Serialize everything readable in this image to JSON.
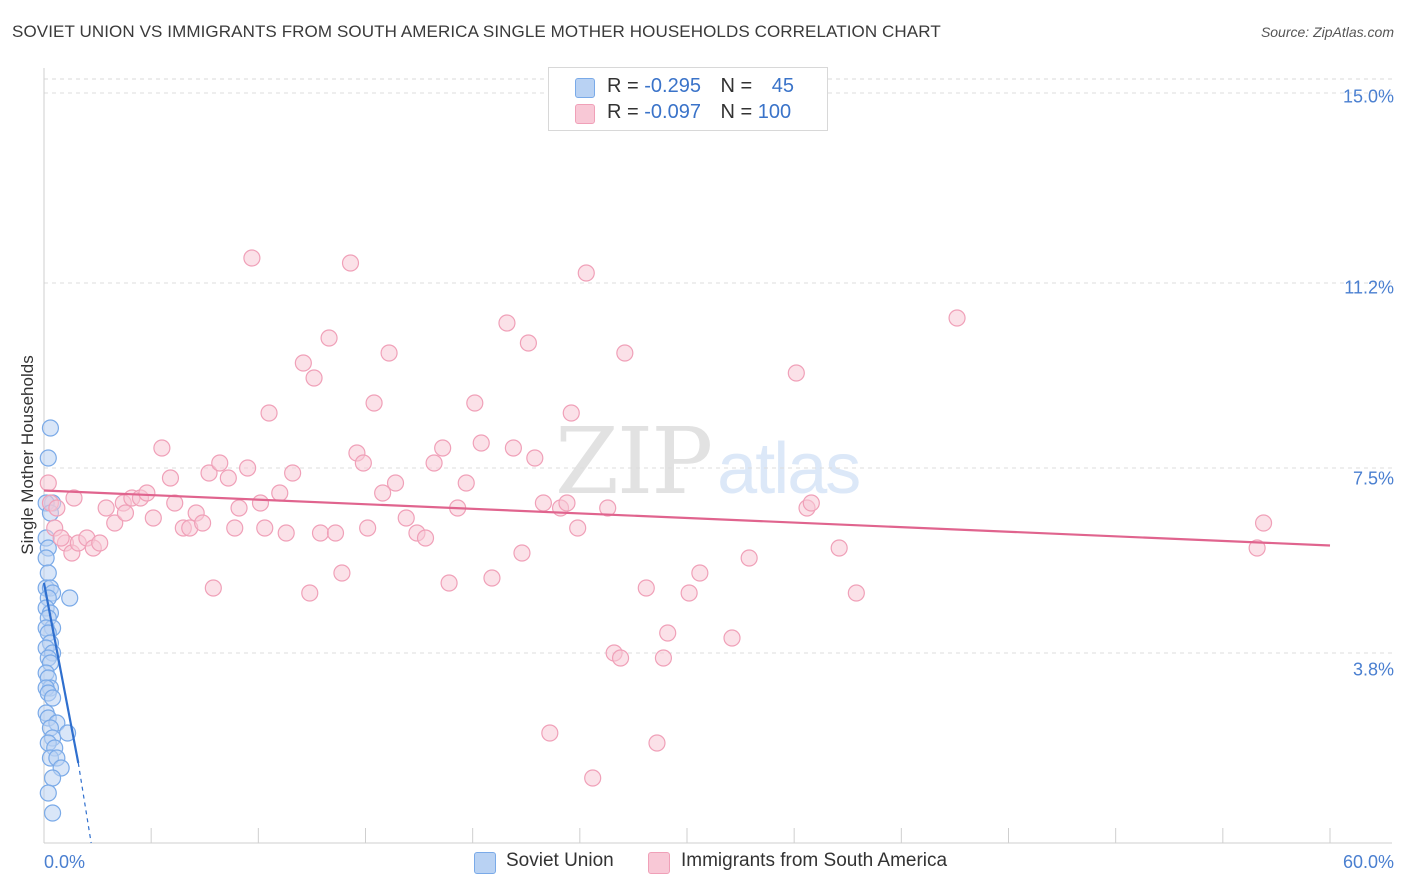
{
  "chart_data": {
    "type": "scatter",
    "title": "SOVIET UNION VS IMMIGRANTS FROM SOUTH AMERICA SINGLE MOTHER HOUSEHOLDS CORRELATION CHART",
    "source": "Source: ZipAtlas.com",
    "ylabel": "Single Mother Households",
    "xlabel": "",
    "xlim": [
      0,
      60
    ],
    "ylim": [
      0,
      15.5
    ],
    "x_tick_labels": [
      "0.0%",
      "60.0%"
    ],
    "y_ticks": [
      {
        "value": 15.0,
        "label": "15.0%"
      },
      {
        "value": 11.2,
        "label": "11.2%"
      },
      {
        "value": 7.5,
        "label": "7.5%"
      },
      {
        "value": 3.8,
        "label": "3.8%"
      }
    ],
    "watermark": {
      "part1": "ZIP",
      "part2": "atlas"
    },
    "legend": {
      "r_label": "R =",
      "n_label": "N =",
      "entries": [
        {
          "r": "-0.295",
          "n": "45"
        },
        {
          "r": "-0.097",
          "n": "100"
        }
      ]
    },
    "series": [
      {
        "name": "Soviet Union",
        "color": "#7aaae8",
        "fill": "#b9d2f3",
        "trend": {
          "x1": 0.0,
          "y1": 5.2,
          "x2": 1.6,
          "y2": 1.6,
          "dash_to_x": 2.2,
          "dash_to_y": 0.0,
          "color": "#2f6fce"
        },
        "points": [
          [
            0.3,
            8.3
          ],
          [
            0.2,
            7.7
          ],
          [
            0.4,
            6.8
          ],
          [
            0.1,
            6.8
          ],
          [
            0.3,
            6.6
          ],
          [
            0.1,
            6.1
          ],
          [
            0.2,
            5.9
          ],
          [
            0.1,
            5.7
          ],
          [
            0.2,
            5.4
          ],
          [
            0.1,
            5.1
          ],
          [
            0.3,
            5.1
          ],
          [
            0.4,
            5.0
          ],
          [
            1.2,
            4.9
          ],
          [
            0.2,
            4.9
          ],
          [
            0.1,
            4.7
          ],
          [
            0.3,
            4.6
          ],
          [
            0.2,
            4.5
          ],
          [
            0.4,
            4.3
          ],
          [
            0.1,
            4.3
          ],
          [
            0.2,
            4.2
          ],
          [
            0.3,
            4.0
          ],
          [
            0.1,
            3.9
          ],
          [
            0.4,
            3.8
          ],
          [
            0.2,
            3.7
          ],
          [
            0.3,
            3.6
          ],
          [
            0.1,
            3.4
          ],
          [
            0.2,
            3.3
          ],
          [
            0.3,
            3.1
          ],
          [
            0.1,
            3.1
          ],
          [
            0.2,
            3.0
          ],
          [
            0.4,
            2.9
          ],
          [
            0.1,
            2.6
          ],
          [
            0.2,
            2.5
          ],
          [
            0.6,
            2.4
          ],
          [
            0.3,
            2.3
          ],
          [
            1.1,
            2.2
          ],
          [
            0.4,
            2.1
          ],
          [
            0.2,
            2.0
          ],
          [
            0.5,
            1.9
          ],
          [
            0.3,
            1.7
          ],
          [
            0.6,
            1.7
          ],
          [
            0.8,
            1.5
          ],
          [
            0.4,
            1.3
          ],
          [
            0.2,
            1.0
          ],
          [
            0.4,
            0.6
          ]
        ]
      },
      {
        "name": "Immigrants from South America",
        "color": "#f0a0b8",
        "fill": "#f8c8d6",
        "trend": {
          "x1": 0.0,
          "y1": 7.05,
          "x2": 60.0,
          "y2": 5.95,
          "color": "#e0648e"
        },
        "points": [
          [
            0.2,
            7.2
          ],
          [
            0.3,
            6.8
          ],
          [
            0.5,
            6.3
          ],
          [
            1.0,
            6.0
          ],
          [
            1.3,
            5.8
          ],
          [
            0.8,
            6.1
          ],
          [
            1.6,
            6.0
          ],
          [
            2.0,
            6.1
          ],
          [
            2.3,
            5.9
          ],
          [
            2.6,
            6.0
          ],
          [
            2.9,
            6.7
          ],
          [
            3.3,
            6.4
          ],
          [
            3.7,
            6.8
          ],
          [
            3.8,
            6.6
          ],
          [
            4.1,
            6.9
          ],
          [
            4.5,
            6.9
          ],
          [
            4.8,
            7.0
          ],
          [
            5.1,
            6.5
          ],
          [
            5.5,
            7.9
          ],
          [
            5.9,
            7.3
          ],
          [
            6.1,
            6.8
          ],
          [
            6.5,
            6.3
          ],
          [
            6.8,
            6.3
          ],
          [
            7.1,
            6.6
          ],
          [
            7.4,
            6.4
          ],
          [
            7.7,
            7.4
          ],
          [
            7.9,
            5.1
          ],
          [
            8.2,
            7.6
          ],
          [
            8.6,
            7.3
          ],
          [
            8.9,
            6.3
          ],
          [
            9.1,
            6.7
          ],
          [
            9.5,
            7.5
          ],
          [
            9.7,
            11.7
          ],
          [
            10.1,
            6.8
          ],
          [
            10.3,
            6.3
          ],
          [
            10.5,
            8.6
          ],
          [
            11.0,
            7.0
          ],
          [
            11.3,
            6.2
          ],
          [
            11.6,
            7.4
          ],
          [
            12.1,
            9.6
          ],
          [
            12.4,
            5.0
          ],
          [
            12.6,
            9.3
          ],
          [
            12.9,
            6.2
          ],
          [
            13.3,
            10.1
          ],
          [
            13.6,
            6.2
          ],
          [
            13.9,
            5.4
          ],
          [
            14.3,
            11.6
          ],
          [
            14.6,
            7.8
          ],
          [
            14.9,
            7.6
          ],
          [
            15.1,
            6.3
          ],
          [
            15.4,
            8.8
          ],
          [
            15.8,
            7.0
          ],
          [
            16.1,
            9.8
          ],
          [
            16.4,
            7.2
          ],
          [
            16.9,
            6.5
          ],
          [
            17.4,
            6.2
          ],
          [
            17.8,
            6.1
          ],
          [
            18.2,
            7.6
          ],
          [
            18.6,
            7.9
          ],
          [
            18.9,
            5.2
          ],
          [
            19.3,
            6.7
          ],
          [
            19.7,
            7.2
          ],
          [
            20.1,
            8.8
          ],
          [
            20.4,
            8.0
          ],
          [
            20.9,
            5.3
          ],
          [
            21.6,
            10.4
          ],
          [
            21.9,
            7.9
          ],
          [
            22.3,
            5.8
          ],
          [
            22.6,
            10.0
          ],
          [
            22.9,
            7.7
          ],
          [
            23.3,
            6.8
          ],
          [
            23.6,
            2.2
          ],
          [
            24.1,
            6.7
          ],
          [
            24.4,
            6.8
          ],
          [
            24.6,
            8.6
          ],
          [
            24.9,
            6.3
          ],
          [
            25.3,
            11.4
          ],
          [
            25.6,
            1.3
          ],
          [
            26.3,
            6.7
          ],
          [
            26.6,
            3.8
          ],
          [
            26.9,
            3.7
          ],
          [
            27.1,
            9.8
          ],
          [
            28.1,
            5.1
          ],
          [
            28.6,
            2.0
          ],
          [
            28.9,
            3.7
          ],
          [
            29.1,
            4.2
          ],
          [
            30.1,
            5.0
          ],
          [
            30.6,
            5.4
          ],
          [
            32.1,
            4.1
          ],
          [
            32.9,
            5.7
          ],
          [
            35.1,
            9.4
          ],
          [
            35.6,
            6.7
          ],
          [
            35.8,
            6.8
          ],
          [
            37.1,
            5.9
          ],
          [
            37.9,
            5.0
          ],
          [
            42.6,
            10.5
          ],
          [
            56.6,
            5.9
          ],
          [
            56.9,
            6.4
          ],
          [
            0.6,
            6.7
          ],
          [
            1.4,
            6.9
          ]
        ]
      }
    ]
  }
}
